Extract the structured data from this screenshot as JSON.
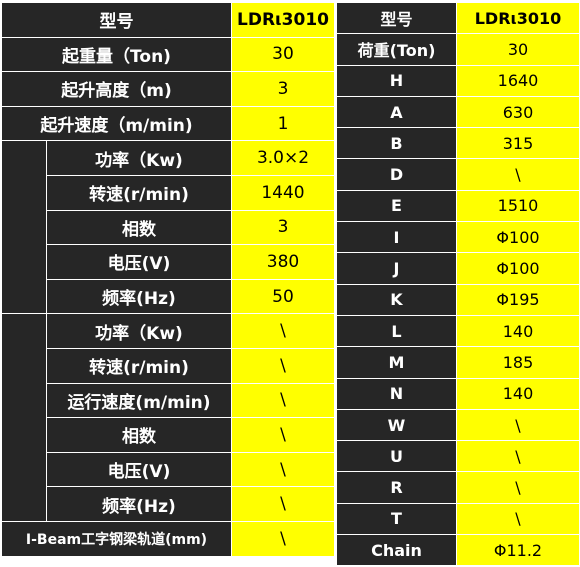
{
  "left": {
    "header": {
      "label": "型号",
      "value": "LDRι3010"
    },
    "general": [
      {
        "label": "起重量（Ton)",
        "value": "30"
      },
      {
        "label": "起升高度（m)",
        "value": "3"
      },
      {
        "label": "起升速度（m/min)",
        "value": "1"
      }
    ],
    "hoist_motor": [
      {
        "label": "功率（Kw)",
        "value": "3.0×2"
      },
      {
        "label": "转速(r/min)",
        "value": "1440"
      },
      {
        "label": "相数",
        "value": "3"
      },
      {
        "label": "电压(V)",
        "value": "380"
      },
      {
        "label": "频率(Hz)",
        "value": "50"
      }
    ],
    "travel_motor": [
      {
        "label": "功率（Kw)",
        "value": "\\"
      },
      {
        "label": "转速(r/min)",
        "value": "\\"
      },
      {
        "label": "运行速度(m/min)",
        "value": "\\"
      },
      {
        "label": "相数",
        "value": "\\"
      },
      {
        "label": "电压(V)",
        "value": "\\"
      },
      {
        "label": "频率(Hz)",
        "value": "\\"
      }
    ],
    "ibeam": {
      "label": "I-Beam工字钢梁轨道(mm)",
      "value": "\\"
    }
  },
  "right": {
    "header": {
      "label": "型号",
      "value": "LDRι3010"
    },
    "rows": [
      {
        "label": "荷重(Ton)",
        "value": "30"
      },
      {
        "label": "H",
        "value": "1640"
      },
      {
        "label": "A",
        "value": "630"
      },
      {
        "label": "B",
        "value": "315"
      },
      {
        "label": "D",
        "value": "\\"
      },
      {
        "label": "E",
        "value": "1510"
      },
      {
        "label": "I",
        "value": "Φ100"
      },
      {
        "label": "J",
        "value": "Φ100"
      },
      {
        "label": "K",
        "value": "Φ195"
      },
      {
        "label": "L",
        "value": "140"
      },
      {
        "label": "M",
        "value": "185"
      },
      {
        "label": "N",
        "value": "140"
      },
      {
        "label": "W",
        "value": "\\"
      },
      {
        "label": "U",
        "value": "\\"
      },
      {
        "label": "R",
        "value": "\\"
      },
      {
        "label": "T",
        "value": "\\"
      },
      {
        "label": "Chain",
        "value": "Φ11.2"
      }
    ]
  }
}
